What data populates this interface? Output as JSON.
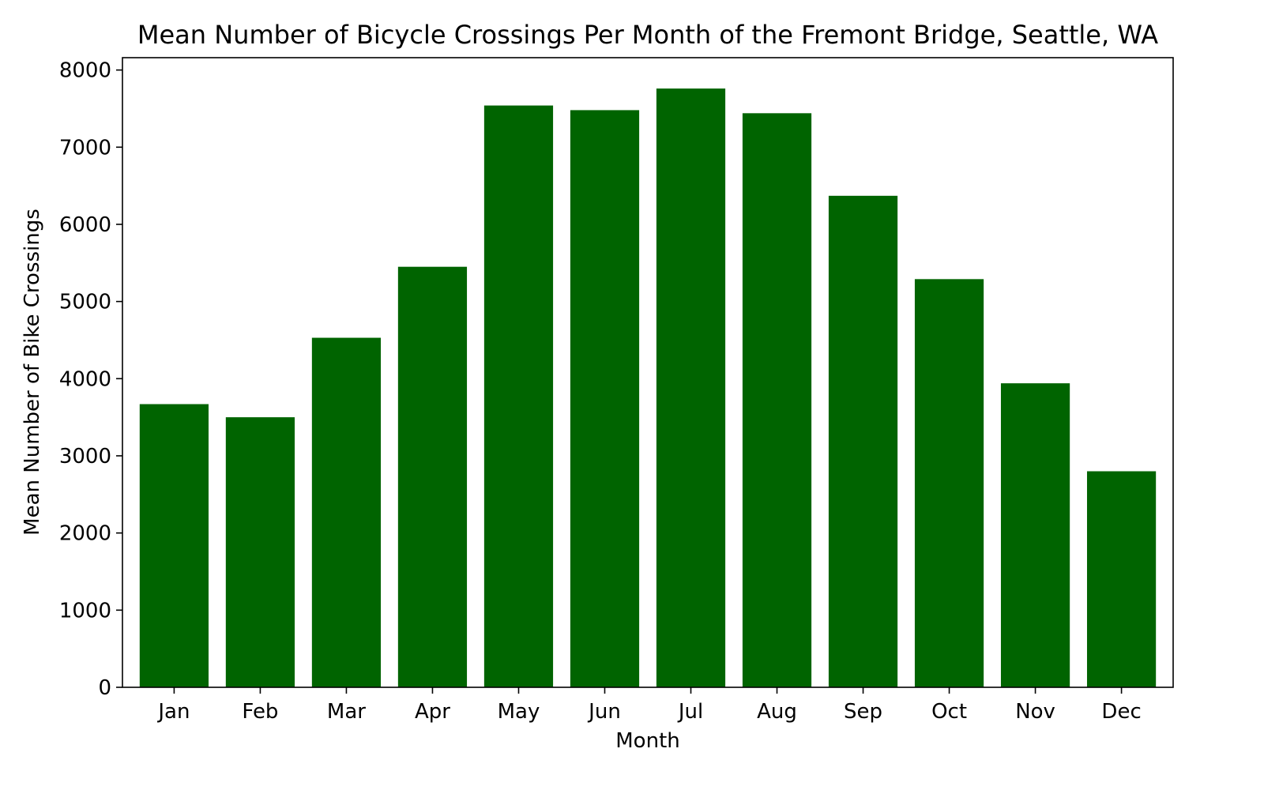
{
  "chart_data": {
    "type": "bar",
    "title": "Mean Number of Bicycle Crossings Per Month of the Fremont Bridge, Seattle, WA",
    "xlabel": "Month",
    "ylabel": "Mean Number of Bike Crossings",
    "categories": [
      "Jan",
      "Feb",
      "Mar",
      "Apr",
      "May",
      "Jun",
      "Jul",
      "Aug",
      "Sep",
      "Oct",
      "Nov",
      "Dec"
    ],
    "values": [
      3670,
      3500,
      4530,
      5450,
      7540,
      7480,
      7760,
      7440,
      6370,
      5290,
      3940,
      2800
    ],
    "ylim": [
      0,
      8160
    ],
    "yticks": [
      0,
      1000,
      2000,
      3000,
      4000,
      5000,
      6000,
      7000,
      8000
    ],
    "ytick_labels": [
      "0",
      "1000",
      "2000",
      "3000",
      "4000",
      "5000",
      "6000",
      "7000",
      "8000"
    ],
    "bar_color": "#006400",
    "grid": false,
    "legend": false
  }
}
